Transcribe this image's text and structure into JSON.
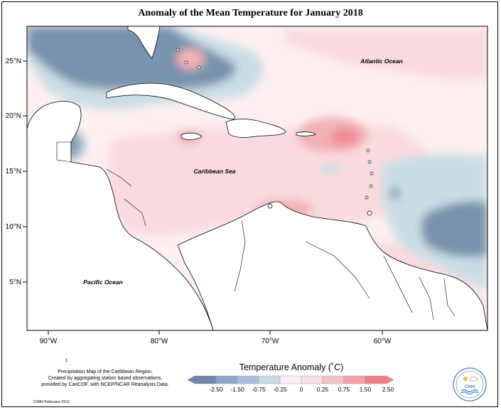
{
  "title": "Anomaly of the Mean Temperature for January 2018",
  "map": {
    "lat_labels": [
      "25°N",
      "20°N",
      "15°N",
      "10°N",
      "5°N"
    ],
    "lon_labels": [
      "90°W",
      "80°W",
      "70°W",
      "60°W"
    ],
    "ocean_labels": {
      "atlantic": "Atlantic Ocean",
      "caribbean": "Caribbean Sea",
      "pacific": "Pacific Ocean"
    },
    "colors": {
      "neg_strong": "#7893ad",
      "neg_mid": "#a4bccd",
      "neg_light": "#cbdde4",
      "neutral": "#fdf0f1",
      "pos_light": "#f9dbdf",
      "pos_mid": "#f2b1b7",
      "pos_strong": "#ef8d95",
      "land": "#ffffff"
    }
  },
  "footnote": {
    "line1": "Precipitation Map of the Caribbean Region.",
    "line2": "Created by aggregating station based observations,",
    "line3": "provided by CariCOF, with NCEP/NCAR Reanalysis Data."
  },
  "credit": "CIMH February-2011",
  "tick_mark": "1",
  "legend": {
    "title": "Temperature Anomaly (˚C)",
    "labels": [
      "-2.50",
      "-1.50",
      "-0.75",
      "-0.25",
      "0",
      "0.25",
      "0.75",
      "1.50",
      "2.50"
    ],
    "colors": [
      "#6f86a8",
      "#8da6cc",
      "#a9bddb",
      "#c9d9e3",
      "#fbeef0",
      "#f8dde1",
      "#f4c1c7",
      "#f3a1a8",
      "#f07d87"
    ]
  },
  "logo": {
    "text": "CIMH"
  }
}
